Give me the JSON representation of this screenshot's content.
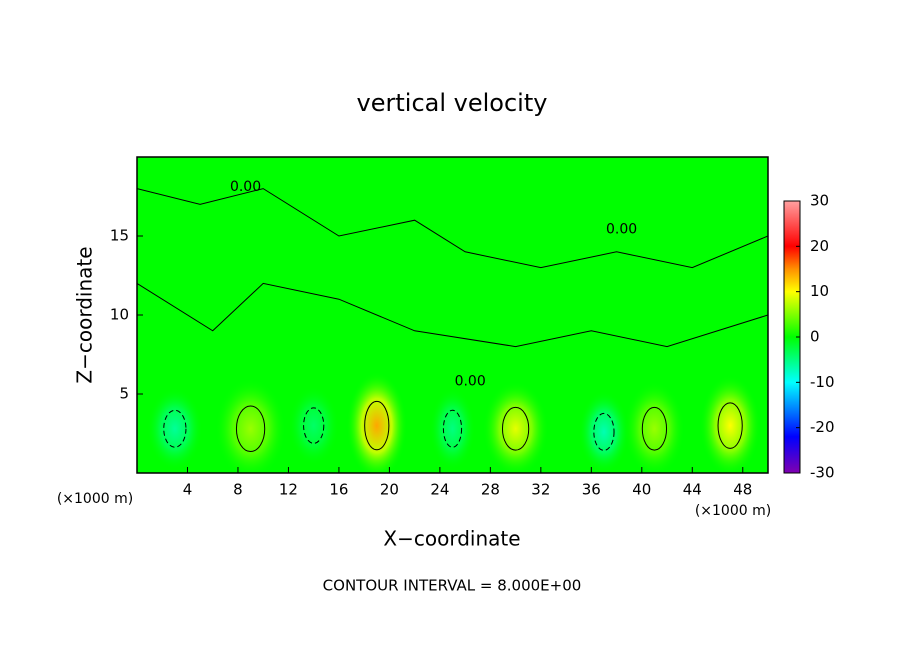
{
  "chart_data": {
    "type": "contour",
    "title": "vertical velocity",
    "x_label": "X−coordinate",
    "y_label": "Z−coordinate",
    "x_unit": "(×1000 m)",
    "y_unit": "(×1000 m)",
    "footnote": "CONTOUR INTERVAL = 8.000E+00",
    "xlim": [
      0,
      50
    ],
    "ylim": [
      0,
      20
    ],
    "xticks": [
      4,
      8,
      12,
      16,
      20,
      24,
      28,
      32,
      36,
      40,
      44,
      48
    ],
    "yticks": [
      5,
      10,
      15
    ],
    "background_value": 0,
    "blobs": [
      {
        "x": 3,
        "z": 2.8,
        "rx": 2.2,
        "rz": 2.6,
        "w": -6
      },
      {
        "x": 9,
        "z": 2.8,
        "rx": 2.8,
        "rz": 3.2,
        "w": 6
      },
      {
        "x": 14,
        "z": 3,
        "rx": 2,
        "rz": 2.5,
        "w": -4
      },
      {
        "x": 19,
        "z": 3,
        "rx": 2.4,
        "rz": 3.4,
        "w": 14
      },
      {
        "x": 25,
        "z": 2.8,
        "rx": 1.8,
        "rz": 2.6,
        "w": -5
      },
      {
        "x": 30,
        "z": 2.8,
        "rx": 2.6,
        "rz": 3,
        "w": 9
      },
      {
        "x": 37,
        "z": 2.6,
        "rx": 2,
        "rz": 2.6,
        "w": -7
      },
      {
        "x": 41,
        "z": 2.8,
        "rx": 2.4,
        "rz": 3,
        "w": 6
      },
      {
        "x": 47,
        "z": 3,
        "rx": 2.4,
        "rz": 3.2,
        "w": 10
      }
    ],
    "annotations": [
      {
        "x": 8.6,
        "z": 18.1,
        "text": "0.00"
      },
      {
        "x": 38.4,
        "z": 15.4,
        "text": "0.00"
      },
      {
        "x": 26.4,
        "z": 5.8,
        "text": "0.00"
      }
    ],
    "colorbar": {
      "lim": [
        -30,
        30
      ],
      "ticks": [
        -30,
        -20,
        -10,
        0,
        10,
        20,
        30
      ],
      "scale": [
        {
          "value": -30,
          "color": "#8000b0"
        },
        {
          "value": -22,
          "color": "#0000ff"
        },
        {
          "value": -10,
          "color": "#00ffff"
        },
        {
          "value": 0,
          "color": "#00ff00"
        },
        {
          "value": 10,
          "color": "#ffff00"
        },
        {
          "value": 15,
          "color": "#ff9000"
        },
        {
          "value": 20,
          "color": "#ff0000"
        },
        {
          "value": 30,
          "color": "#ffa0a0"
        }
      ]
    }
  }
}
